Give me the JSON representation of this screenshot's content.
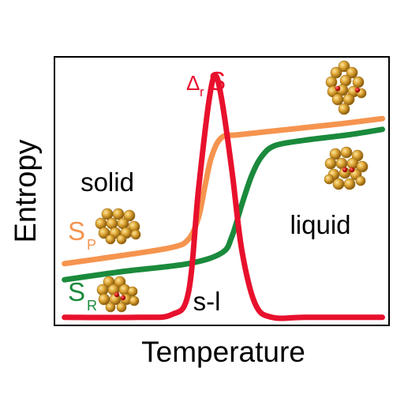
{
  "chart_data": {
    "type": "line",
    "title": "",
    "xlabel": "Temperature",
    "ylabel": "Entropy",
    "xlim": [
      0,
      1
    ],
    "ylim": [
      0,
      1
    ],
    "grid": false,
    "ticks": false,
    "series": [
      {
        "name": "S_P",
        "label_main": "S",
        "label_sub": "P",
        "color": "#f5944f",
        "shape": "sigmoid",
        "x": [
          0.03,
          0.2,
          0.35,
          0.4,
          0.43,
          0.45,
          0.47,
          0.5,
          0.55,
          0.7,
          0.85,
          0.98
        ],
        "y": [
          0.23,
          0.26,
          0.29,
          0.32,
          0.4,
          0.52,
          0.63,
          0.7,
          0.71,
          0.73,
          0.75,
          0.77
        ]
      },
      {
        "name": "S_R",
        "label_main": "S",
        "label_sub": "R",
        "color": "#1a8a3c",
        "shape": "sigmoid",
        "x": [
          0.03,
          0.2,
          0.4,
          0.5,
          0.53,
          0.56,
          0.59,
          0.62,
          0.66,
          0.75,
          0.88,
          0.98
        ],
        "y": [
          0.17,
          0.2,
          0.23,
          0.27,
          0.33,
          0.45,
          0.56,
          0.63,
          0.67,
          0.69,
          0.71,
          0.73
        ]
      },
      {
        "name": "ΔrS",
        "label_main": "Δ",
        "label_sub": "r",
        "label_tail": "S",
        "color": "#e8112d",
        "shape": "peak",
        "x": [
          0.03,
          0.25,
          0.35,
          0.4,
          0.43,
          0.46,
          0.48,
          0.5,
          0.53,
          0.56,
          0.6,
          0.65,
          0.75,
          0.98
        ],
        "y": [
          0.03,
          0.03,
          0.04,
          0.12,
          0.5,
          0.82,
          0.93,
          0.84,
          0.58,
          0.28,
          0.08,
          0.03,
          0.03,
          0.03
        ]
      }
    ],
    "annotations": {
      "solid": "solid",
      "liquid": "liquid",
      "transition": "s-l"
    }
  },
  "colors": {
    "frame": "#000000",
    "background": "#ffffff",
    "cluster_gold": "#d99a26",
    "cluster_red": "#d81515"
  },
  "icons": [
    "cluster-icon-top-right",
    "cluster-icon-right",
    "cluster-icon-sp",
    "cluster-icon-sr"
  ]
}
